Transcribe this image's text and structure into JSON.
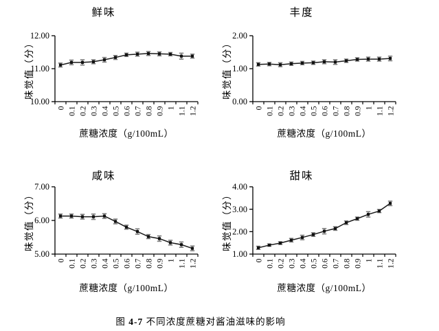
{
  "figure": {
    "caption_prefix": "图",
    "caption_number": "4-7",
    "caption_text": "不同浓度蔗糖对酱油滋味的影响"
  },
  "style": {
    "background": "#ffffff",
    "axis_color": "#000000",
    "line_color": "#1a1a1a",
    "marker_color": "#111111",
    "error_bar_color": "#3a3a3a",
    "error_cap_color": "#7d7d7d",
    "text_color": "#000000"
  },
  "chart_data": [
    {
      "type": "line",
      "title": "鲜味",
      "xlabel": "蔗糖浓度（g/100mL）",
      "ylabel": "味觉值（分）",
      "categories": [
        "0",
        "0.1",
        "0.2",
        "0.3",
        "0.4",
        "0.5",
        "0.6",
        "0.7",
        "0.8",
        "0.9",
        "1",
        "1.1",
        "1.2"
      ],
      "values": [
        11.11,
        11.19,
        11.19,
        11.21,
        11.27,
        11.34,
        11.42,
        11.44,
        11.46,
        11.45,
        11.44,
        11.38,
        11.38
      ],
      "errors": [
        0.06,
        0.07,
        0.08,
        0.06,
        0.07,
        0.06,
        0.05,
        0.06,
        0.06,
        0.06,
        0.05,
        0.09,
        0.06
      ],
      "ylim": [
        10,
        12
      ],
      "yticks": [
        10,
        11,
        12
      ],
      "ytick_decimals": 2,
      "marker": "square",
      "error_bars": true,
      "grid": false,
      "legend": false
    },
    {
      "type": "line",
      "title": "丰度",
      "xlabel": "蔗糖浓度（g/100mL）",
      "ylabel": "味觉值（分）",
      "categories": [
        "0",
        "0.1",
        "0.2",
        "0.3",
        "0.4",
        "0.5",
        "0.6",
        "0.7",
        "0.8",
        "0.9",
        "1",
        "1.1",
        "1.2"
      ],
      "values": [
        1.13,
        1.14,
        1.12,
        1.15,
        1.17,
        1.18,
        1.21,
        1.2,
        1.24,
        1.28,
        1.29,
        1.29,
        1.31
      ],
      "errors": [
        0.05,
        0.05,
        0.06,
        0.05,
        0.05,
        0.05,
        0.06,
        0.07,
        0.05,
        0.05,
        0.06,
        0.06,
        0.07
      ],
      "ylim": [
        0,
        2
      ],
      "yticks": [
        0,
        1,
        2
      ],
      "ytick_decimals": 2,
      "marker": "square",
      "error_bars": true,
      "grid": false,
      "legend": false
    },
    {
      "type": "line",
      "title": "咸味",
      "xlabel": "蔗糖浓度（g/100mL）",
      "ylabel": "味觉值（分）",
      "categories": [
        "0",
        "0.1",
        "0.2",
        "0.3",
        "0.4",
        "0.5",
        "0.6",
        "0.7",
        "0.8",
        "0.9",
        "1",
        "1.1",
        "1.2"
      ],
      "values": [
        6.13,
        6.13,
        6.11,
        6.11,
        6.13,
        5.97,
        5.8,
        5.67,
        5.52,
        5.46,
        5.34,
        5.28,
        5.17
      ],
      "errors": [
        0.06,
        0.06,
        0.07,
        0.08,
        0.07,
        0.07,
        0.06,
        0.08,
        0.06,
        0.08,
        0.07,
        0.08,
        0.07
      ],
      "ylim": [
        5,
        7
      ],
      "yticks": [
        5,
        6,
        7
      ],
      "ytick_decimals": 2,
      "marker": "square",
      "error_bars": true,
      "grid": false,
      "legend": false
    },
    {
      "type": "line",
      "title": "甜味",
      "xlabel": "蔗糖浓度（g/100mL）",
      "ylabel": "味觉值（分）",
      "categories": [
        "0",
        "0.1",
        "0.2",
        "0.3",
        "0.4",
        "0.5",
        "0.6",
        "0.7",
        "0.8",
        "0.9",
        "1",
        "1.1",
        "1.2"
      ],
      "values": [
        1.28,
        1.4,
        1.49,
        1.62,
        1.74,
        1.87,
        2.02,
        2.14,
        2.4,
        2.58,
        2.77,
        2.92,
        3.26
      ],
      "errors": [
        0.07,
        0.05,
        0.06,
        0.08,
        0.1,
        0.08,
        0.12,
        0.08,
        0.08,
        0.07,
        0.12,
        0.07,
        0.1
      ],
      "ylim": [
        1,
        4
      ],
      "yticks": [
        1,
        2,
        3,
        4
      ],
      "ytick_decimals": 2,
      "marker": "square",
      "error_bars": true,
      "grid": false,
      "legend": false
    }
  ]
}
